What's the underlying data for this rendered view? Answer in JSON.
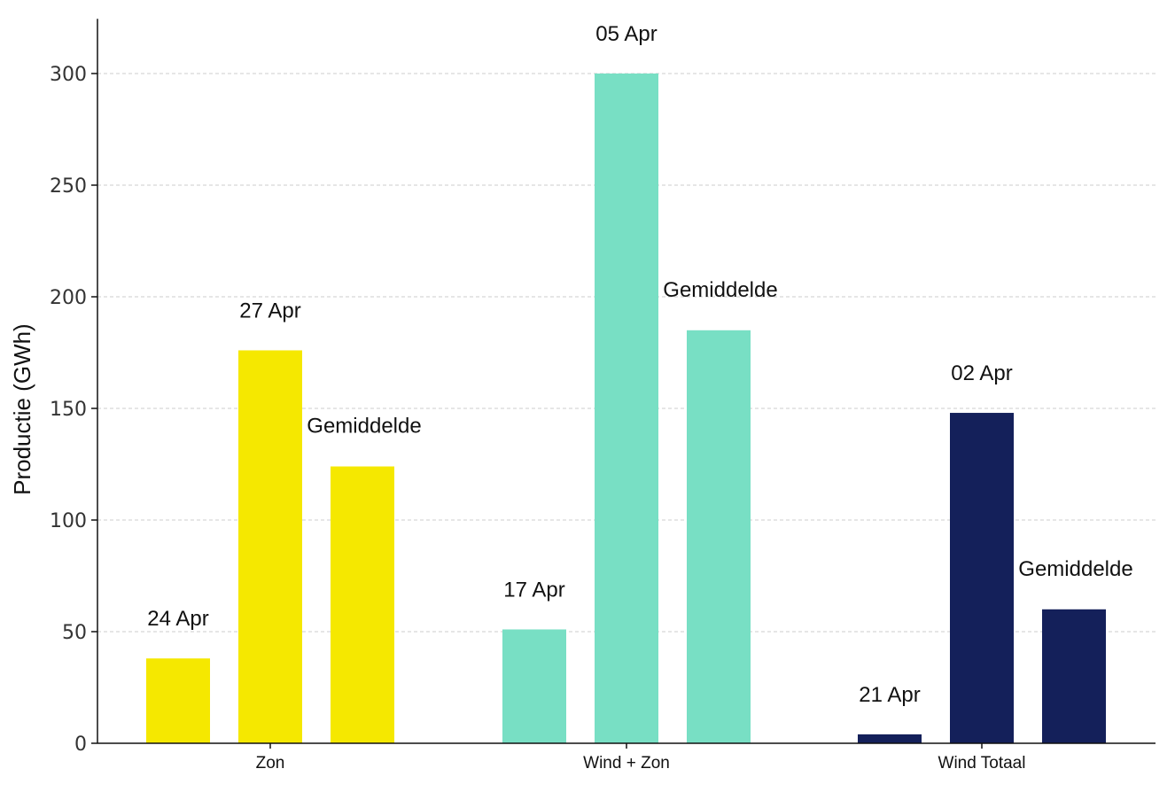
{
  "chart_data": {
    "type": "bar",
    "title": "",
    "xlabel": "",
    "ylabel": "Productie (GWh)",
    "ylim": [
      0,
      315
    ],
    "yticks": [
      0,
      50,
      100,
      150,
      200,
      250,
      300
    ],
    "grid": true,
    "legend": "none",
    "categories": [
      {
        "name": "Zon",
        "color": "#f5e800",
        "bars": [
          {
            "label": "24 Apr",
            "value": 38
          },
          {
            "label": "27 Apr",
            "value": 176
          },
          {
            "label": "Gemiddelde",
            "value": 124
          }
        ]
      },
      {
        "name": "Wind + Zon",
        "color": "#78dfc4",
        "bars": [
          {
            "label": "17 Apr",
            "value": 51
          },
          {
            "label": "05 Apr",
            "value": 300
          },
          {
            "label": "Gemiddelde",
            "value": 185
          }
        ]
      },
      {
        "name": "Wind Totaal",
        "color": "#14205a",
        "bars": [
          {
            "label": "21 Apr",
            "value": 4
          },
          {
            "label": "02 Apr",
            "value": 148
          },
          {
            "label": "Gemiddelde",
            "value": 60
          }
        ]
      }
    ]
  }
}
